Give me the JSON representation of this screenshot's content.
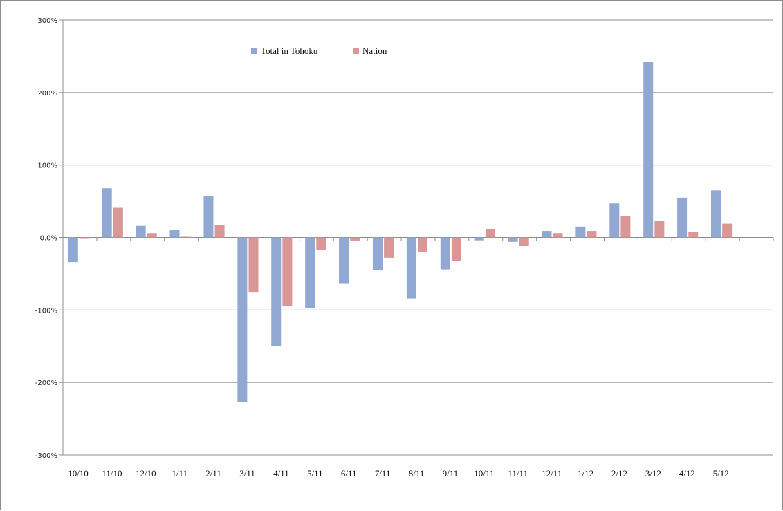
{
  "chart_data": {
    "type": "bar",
    "title": "",
    "xlabel": "",
    "ylabel": "",
    "ylim": [
      -300,
      300
    ],
    "yticks": [
      -300,
      -200,
      -100,
      0,
      100,
      200,
      300
    ],
    "ytick_labels": [
      "-300%",
      "-200%",
      "-100%",
      "0.0%",
      "100%",
      "200%",
      "300%"
    ],
    "grid": true,
    "legend_position": "top-center",
    "categories": [
      "10/10",
      "11/10",
      "12/10",
      "1/11",
      "2/11",
      "3/11",
      "4/11",
      "5/11",
      "6/11",
      "7/11",
      "8/11",
      "9/11",
      "10/11",
      "11/11",
      "12/11",
      "1/12",
      "2/12",
      "3/12",
      "4/12",
      "5/12",
      ""
    ],
    "series": [
      {
        "name": "Total in Tohoku",
        "color": "#91a8d3",
        "values": [
          -34,
          68,
          16,
          10,
          57,
          -227,
          -150,
          -97,
          -63,
          -45,
          -84,
          -44,
          -4,
          -6,
          9,
          15,
          47,
          242,
          55,
          65,
          null
        ]
      },
      {
        "name": "Nation",
        "color": "#d99795",
        "values": [
          -1,
          41,
          6,
          1,
          17,
          -76,
          -95,
          -17,
          -5,
          -28,
          -20,
          -32,
          12,
          -12,
          6,
          9,
          30,
          23,
          8,
          19,
          null
        ]
      }
    ]
  }
}
